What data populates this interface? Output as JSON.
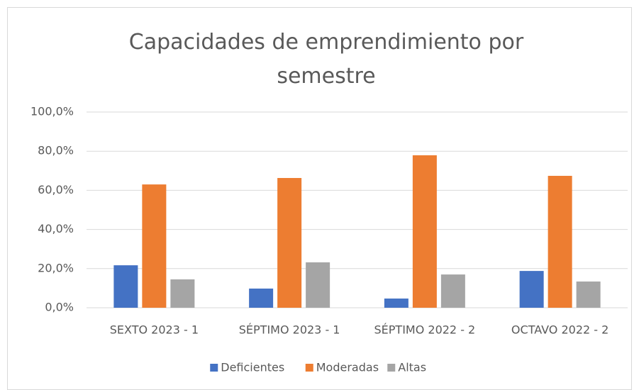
{
  "chart_data": {
    "type": "bar",
    "title": "Capacidades de emprendimiento por semestre",
    "categories": [
      "SEXTO 2023 - 1",
      "SÉPTIMO 2023 - 1",
      "SÉPTIMO 2022 - 2",
      "OCTAVO 2022 - 2"
    ],
    "series": [
      {
        "name": "Deficientes",
        "color": "#4472c4",
        "values": [
          21.7,
          9.8,
          4.7,
          18.8
        ]
      },
      {
        "name": "Moderadas",
        "color": "#ed7d31",
        "values": [
          63.0,
          66.3,
          77.9,
          67.4
        ]
      },
      {
        "name": "Altas",
        "color": "#a5a5a5",
        "values": [
          14.5,
          23.2,
          17.0,
          13.4
        ]
      }
    ],
    "ylim": [
      0,
      100
    ],
    "yticks": [
      {
        "value": 0,
        "label": "0,0%"
      },
      {
        "value": 20,
        "label": "20,0%"
      },
      {
        "value": 40,
        "label": "40,0%"
      },
      {
        "value": 60,
        "label": "60,0%"
      },
      {
        "value": 80,
        "label": "80,0%"
      },
      {
        "value": 100,
        "label": "100,0%"
      }
    ],
    "grid": true,
    "legend": "bottom"
  }
}
